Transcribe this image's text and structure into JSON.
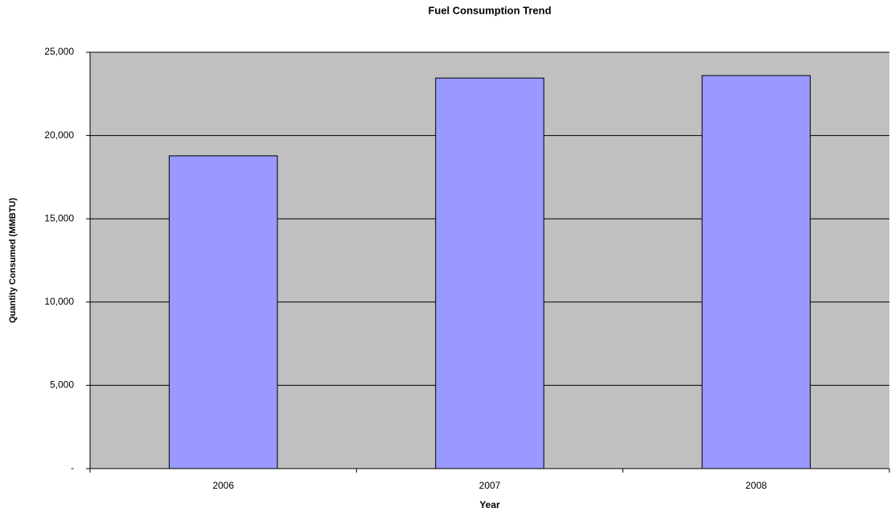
{
  "chart_data": {
    "type": "bar",
    "title": "Fuel Consumption Trend",
    "x_label": "Year",
    "y_label": "Quantity Consumed (MMBTU)",
    "categories": [
      "2006",
      "2007",
      "2008"
    ],
    "values": [
      18780,
      23450,
      23600
    ],
    "color": "#9999ff",
    "ylim": [
      0,
      25000
    ],
    "yticks": [
      {
        "value": 0,
        "label": "-"
      },
      {
        "value": 5000,
        "label": "5,000"
      },
      {
        "value": 10000,
        "label": "10,000"
      },
      {
        "value": 15000,
        "label": "15,000"
      },
      {
        "value": 20000,
        "label": "20,000"
      },
      {
        "value": 25000,
        "label": "25,000"
      }
    ],
    "grid": true
  }
}
